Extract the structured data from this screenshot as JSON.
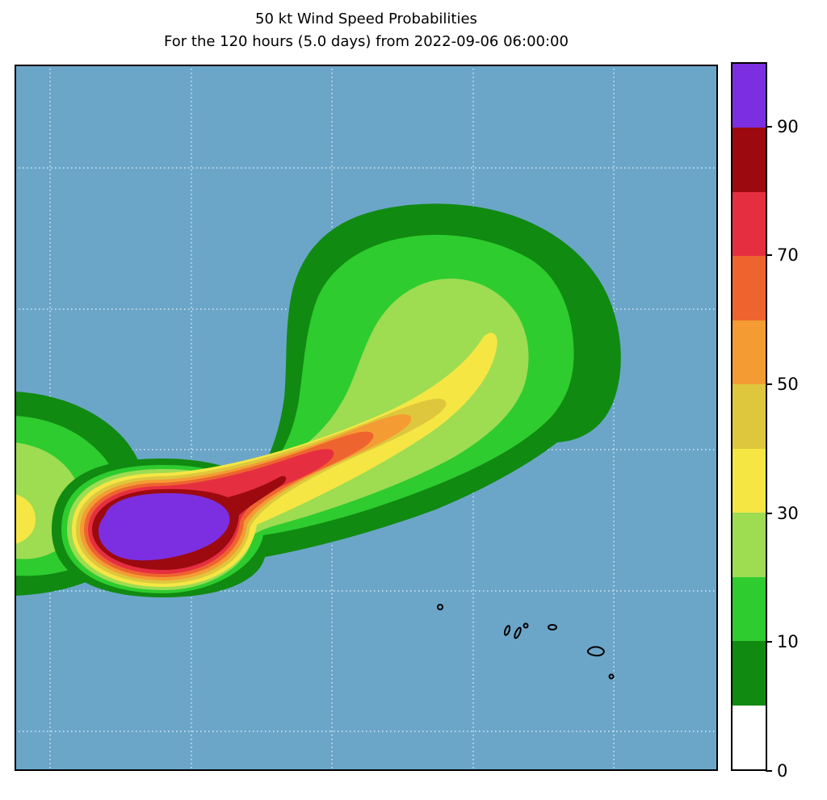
{
  "title": {
    "line1": "50 kt Wind Speed Probabilities",
    "line2": "For the 120 hours (5.0 days) from 2022-09-06 06:00:00"
  },
  "palette": {
    "ocean": "#6ba6c9",
    "grid": "#ffffff",
    "island_outline": "#000000",
    "frame": "#000000",
    "p0": "#ffffff",
    "p5": "#118a11",
    "p10": "#2ecc2f",
    "p20": "#9edc52",
    "p30": "#f5e644",
    "p40": "#dfc73d",
    "p50": "#f49c33",
    "p60": "#ee642f",
    "p70": "#e62e41",
    "p80": "#9c0a10",
    "p90": "#7c2fe0"
  },
  "colorbar": {
    "order": "top_to_bottom",
    "segments": [
      {
        "range": "90-100",
        "key": "p90"
      },
      {
        "range": "80-90",
        "key": "p80"
      },
      {
        "range": "70-80",
        "key": "p70"
      },
      {
        "range": "60-70",
        "key": "p60"
      },
      {
        "range": "50-60",
        "key": "p50"
      },
      {
        "range": "40-50",
        "key": "p40"
      },
      {
        "range": "30-40",
        "key": "p30"
      },
      {
        "range": "20-30",
        "key": "p20"
      },
      {
        "range": "10-20",
        "key": "p10"
      },
      {
        "range": "5-10",
        "key": "p5"
      },
      {
        "range": "0-5",
        "key": "p0"
      }
    ],
    "ticks": [
      {
        "label": "90",
        "index": 1
      },
      {
        "label": "70",
        "index": 3
      },
      {
        "label": "50",
        "index": 5
      },
      {
        "label": "30",
        "index": 7
      },
      {
        "label": "10",
        "index": 9
      },
      {
        "label": "0",
        "index": 11
      }
    ]
  },
  "chart_data": {
    "type": "heatmap",
    "subtype": "filled_contour_probability_map",
    "title": "50 kt Wind Speed Probabilities",
    "subtitle": "For the 120 hours (5.0 days) from 2022-09-06 06:00:00",
    "quantity": "Probability of 50 kt winds (%)",
    "wind_speed_kt": 50,
    "forecast_hours": 120,
    "forecast_days": 5.0,
    "start_time": "2022-09-06 06:00:00",
    "contour_levels_percent": [
      0,
      5,
      10,
      20,
      30,
      40,
      50,
      60,
      70,
      80,
      90,
      100
    ],
    "colorbar_tick_labels": [
      0,
      10,
      30,
      50,
      70,
      90
    ],
    "colorbar_orientation": "vertical_right",
    "grid": "white dotted graticule, 5 vertical x 5 horizontal lines",
    "basemap": "light steel-blue ocean with small black island outlines (Hawaiian-style chain, lower right)",
    "features": [
      "Maximum probability core (>90%) near left-center of the map",
      "Thin 70-90% rings and streak immediately around/northeast of the core",
      "Broad probability plume fans out toward the northeast, decreasing from orange/yellow to greens",
      "Secondary low-probability (5-30%) lobe entering at the left edge of the map"
    ]
  }
}
